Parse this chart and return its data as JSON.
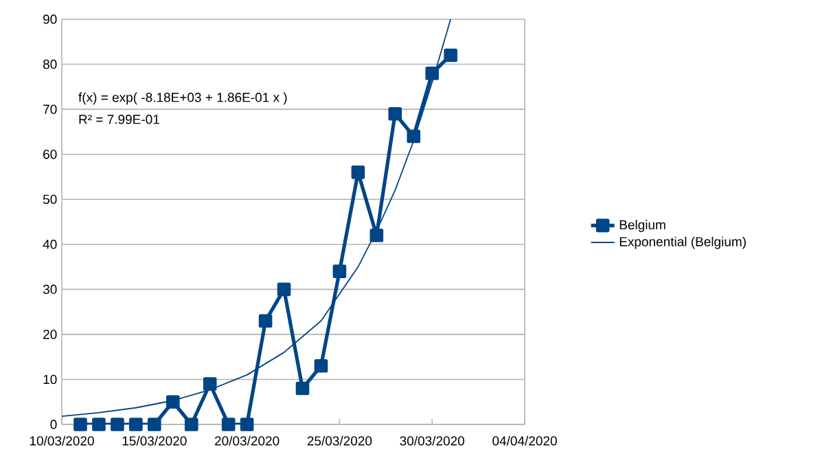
{
  "chart_data": {
    "type": "line",
    "x": [
      "2020-03-11",
      "2020-03-12",
      "2020-03-13",
      "2020-03-14",
      "2020-03-15",
      "2020-03-16",
      "2020-03-17",
      "2020-03-18",
      "2020-03-19",
      "2020-03-20",
      "2020-03-21",
      "2020-03-22",
      "2020-03-23",
      "2020-03-24",
      "2020-03-25",
      "2020-03-26",
      "2020-03-27",
      "2020-03-28",
      "2020-03-29",
      "2020-03-30",
      "2020-03-31"
    ],
    "series": [
      {
        "name": "Belgium",
        "color": "#004586",
        "marker": "square",
        "values": [
          0,
          0,
          0,
          0,
          0,
          5,
          0,
          9,
          0,
          0,
          23,
          30,
          8,
          13,
          34,
          56,
          42,
          69,
          64,
          78,
          82
        ]
      },
      {
        "name": "Exponential (Belgium)",
        "color": "#004586",
        "marker": "none",
        "x": [
          "2020-03-10",
          "2020-03-12",
          "2020-03-14",
          "2020-03-16",
          "2020-03-18",
          "2020-03-20",
          "2020-03-22",
          "2020-03-24",
          "2020-03-25",
          "2020-03-26",
          "2020-03-27",
          "2020-03-28",
          "2020-03-29",
          "2020-03-30",
          "2020-03-31"
        ],
        "values": [
          1.8,
          2.6,
          3.7,
          5.3,
          7.7,
          11,
          16,
          23,
          29,
          35,
          43,
          52,
          63,
          76,
          90
        ]
      }
    ],
    "xlim": [
      "2020-03-10",
      "2020-04-04"
    ],
    "xticks": [
      {
        "value": "2020-03-10",
        "label": "10/03/2020"
      },
      {
        "value": "2020-03-15",
        "label": "15/03/2020"
      },
      {
        "value": "2020-03-20",
        "label": "20/03/2020"
      },
      {
        "value": "2020-03-25",
        "label": "25/03/2020"
      },
      {
        "value": "2020-03-30",
        "label": "30/03/2020"
      },
      {
        "value": "2020-04-04",
        "label": "04/04/2020"
      }
    ],
    "ylim": [
      0,
      90
    ],
    "yticks": [
      0,
      10,
      20,
      30,
      40,
      50,
      60,
      70,
      80,
      90
    ],
    "grid": "y",
    "legend": "right",
    "annotations": [
      "f(x) = exp( -8.18E+03 + 1.86E-01 x )",
      "R² = 7.99E-01"
    ]
  }
}
